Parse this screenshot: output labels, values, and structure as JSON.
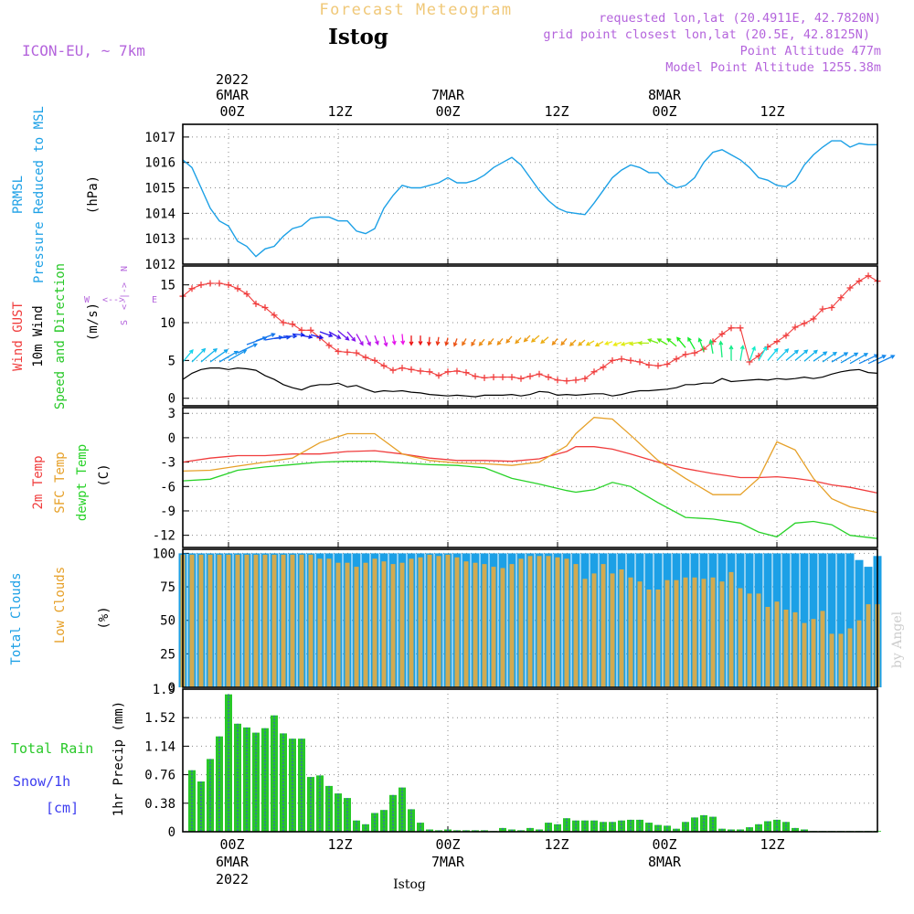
{
  "header": {
    "subtitle": "Forecast Meteogram",
    "station": "Istog",
    "model": "ICON-EU, ~ 7km",
    "requested": "requested lon,lat (20.4911E, 42.7820N)",
    "gridpoint": "grid point closest lon,lat (20.5E, 42.8125N)",
    "point_alt": "Point Altitude 477m",
    "model_alt": "Model Point Altitude 1255.38m",
    "footer_station": "Istog",
    "credit": "by Angel"
  },
  "time_axis": {
    "top_year": "2022",
    "ticks": [
      {
        "label": "00Z",
        "date": "6MAR",
        "hour": 0
      },
      {
        "label": "12Z",
        "date": "",
        "hour": 12
      },
      {
        "label": "00Z",
        "date": "7MAR",
        "hour": 24
      },
      {
        "label": "12Z",
        "date": "",
        "hour": 36
      },
      {
        "label": "00Z",
        "date": "8MAR",
        "hour": 48
      },
      {
        "label": "12Z",
        "date": "",
        "hour": 60
      }
    ],
    "range_hours": [
      -5,
      71
    ]
  },
  "colors": {
    "pressure": "#1ca0e6",
    "gust": "#f03c3c",
    "wind": "#000000",
    "temp2m": "#f03c3c",
    "sfc": "#e6a028",
    "dewpt": "#28d228",
    "total_clouds": "#1ca0e6",
    "low_clouds": "#d2aa50",
    "rain": "#28c828",
    "snow": "#3c3cf0",
    "violet": "#b464dc",
    "grid": "#888888"
  },
  "panel_labels": {
    "pressure": [
      "PRMSL",
      "Pressure Reduced to MSL",
      "(hPa)"
    ],
    "wind": [
      "Wind GUST",
      "10m Wind",
      "Speed and Direction",
      "(m/s)"
    ],
    "compass": {
      "n": "N",
      "s": "S",
      "w": "W",
      "e": "E"
    },
    "temp": [
      "2m Temp",
      "SFC Temp",
      "dewpt Temp",
      "(C)"
    ],
    "clouds": [
      "Total Clouds",
      "Low Clouds",
      "(%)"
    ],
    "precip": [
      "Total Rain",
      "Snow/1h",
      "[cm]",
      "1hr Precip (mm)"
    ]
  },
  "chart_data": [
    {
      "type": "line",
      "name": "pressure",
      "ylabel": "(hPa)",
      "ylim": [
        1012,
        1017.5
      ],
      "yticks": [
        1012,
        1013,
        1014,
        1015,
        1016,
        1017
      ],
      "x": [
        -5,
        -4,
        -3,
        -2,
        -1,
        0,
        1,
        2,
        3,
        4,
        5,
        6,
        7,
        8,
        9,
        10,
        11,
        12,
        13,
        14,
        15,
        16,
        17,
        18,
        19,
        20,
        21,
        22,
        23,
        24,
        25,
        26,
        27,
        28,
        29,
        30,
        31,
        32,
        33,
        34,
        35,
        36,
        37,
        38,
        39,
        40,
        41,
        42,
        43,
        44,
        45,
        46,
        47,
        48,
        49,
        50,
        51,
        52,
        53,
        54,
        55,
        56,
        57,
        58,
        59,
        60,
        61,
        62,
        63,
        64,
        65,
        66,
        67,
        68,
        69,
        70,
        71
      ],
      "y": [
        1016.1,
        1015.8,
        1015.0,
        1014.2,
        1013.7,
        1013.5,
        1012.9,
        1012.7,
        1012.3,
        1012.6,
        1012.7,
        1013.1,
        1013.4,
        1013.5,
        1013.8,
        1013.85,
        1013.85,
        1013.7,
        1013.7,
        1013.3,
        1013.2,
        1013.4,
        1014.2,
        1014.7,
        1015.1,
        1015.0,
        1015.0,
        1015.1,
        1015.2,
        1015.4,
        1015.2,
        1015.2,
        1015.3,
        1015.5,
        1015.8,
        1016.0,
        1016.2,
        1015.9,
        1015.4,
        1014.9,
        1014.5,
        1014.2,
        1014.05,
        1014.0,
        1013.95,
        1014.4,
        1014.9,
        1015.4,
        1015.7,
        1015.9,
        1015.8,
        1015.6,
        1015.6,
        1015.2,
        1015.0,
        1015.1,
        1015.4,
        1016.0,
        1016.4,
        1016.5,
        1016.3,
        1016.1,
        1015.8,
        1015.4,
        1015.3,
        1015.1,
        1015.05,
        1015.3,
        1015.9,
        1016.3,
        1016.6,
        1016.85,
        1016.85,
        1016.6,
        1016.75,
        1016.7,
        1016.7
      ]
    },
    {
      "type": "line",
      "name": "wind",
      "ylabel": "(m/s)",
      "ylim": [
        -1,
        17.5
      ],
      "yticks": [
        0,
        5,
        10,
        15
      ],
      "x": [
        -5,
        -4,
        -3,
        -2,
        -1,
        0,
        1,
        2,
        3,
        4,
        5,
        6,
        7,
        8,
        9,
        10,
        11,
        12,
        13,
        14,
        15,
        16,
        17,
        18,
        19,
        20,
        21,
        22,
        23,
        24,
        25,
        26,
        27,
        28,
        29,
        30,
        31,
        32,
        33,
        34,
        35,
        36,
        37,
        38,
        39,
        40,
        41,
        42,
        43,
        44,
        45,
        46,
        47,
        48,
        49,
        50,
        51,
        52,
        53,
        54,
        55,
        56,
        57,
        58,
        59,
        60,
        61,
        62,
        63,
        64,
        65,
        66,
        67,
        68,
        69,
        70,
        71
      ],
      "gust": [
        13.5,
        14.5,
        15.0,
        15.2,
        15.2,
        15.0,
        14.5,
        13.8,
        12.5,
        12.0,
        11.0,
        10.0,
        9.8,
        9.0,
        9.0,
        8.0,
        7.0,
        6.2,
        6.1,
        6.0,
        5.4,
        5.0,
        4.3,
        3.7,
        4.0,
        3.8,
        3.6,
        3.5,
        3.0,
        3.5,
        3.6,
        3.4,
        2.9,
        2.7,
        2.8,
        2.8,
        2.8,
        2.6,
        2.9,
        3.2,
        2.8,
        2.4,
        2.3,
        2.4,
        2.6,
        3.5,
        4.1,
        5.0,
        5.2,
        5.0,
        4.8,
        4.4,
        4.3,
        4.5,
        5.2,
        5.8,
        6.0,
        6.5,
        7.5,
        8.5,
        9.3,
        9.3,
        4.8,
        5.6,
        6.8,
        7.5,
        8.3,
        9.4,
        9.9,
        10.5,
        11.8,
        12.0,
        13.3,
        14.6,
        15.5,
        16.2,
        15.5
      ],
      "speed": [
        2.5,
        3.3,
        3.8,
        4.0,
        4.0,
        3.8,
        4.0,
        3.9,
        3.7,
        3.0,
        2.5,
        1.8,
        1.4,
        1.1,
        1.6,
        1.8,
        1.8,
        2.0,
        1.5,
        1.7,
        1.2,
        0.8,
        1.0,
        0.9,
        1.0,
        0.8,
        0.7,
        0.5,
        0.4,
        0.3,
        0.4,
        0.3,
        0.2,
        0.4,
        0.4,
        0.4,
        0.5,
        0.3,
        0.5,
        0.9,
        0.8,
        0.4,
        0.5,
        0.4,
        0.5,
        0.6,
        0.6,
        0.3,
        0.5,
        0.8,
        1.0,
        1.0,
        1.1,
        1.2,
        1.4,
        1.8,
        1.8,
        2.0,
        2.0,
        2.6,
        2.2,
        2.3,
        2.4,
        2.5,
        2.4,
        2.6,
        2.5,
        2.6,
        2.8,
        2.6,
        2.8,
        3.2,
        3.5,
        3.7,
        3.8,
        3.4,
        3.3
      ],
      "direction": [
        220,
        225,
        230,
        235,
        240,
        240,
        245,
        250,
        250,
        260,
        265,
        270,
        275,
        280,
        285,
        290,
        300,
        310,
        320,
        330,
        335,
        340,
        345,
        350,
        355,
        0,
        0,
        5,
        10,
        15,
        20,
        30,
        30,
        40,
        40,
        40,
        40,
        45,
        45,
        50,
        50,
        40,
        40,
        45,
        50,
        60,
        60,
        70,
        70,
        75,
        80,
        90,
        110,
        120,
        130,
        140,
        150,
        160,
        170,
        175,
        180,
        190,
        200,
        210,
        220,
        225,
        230,
        230,
        230,
        235,
        235,
        240,
        240,
        240,
        245,
        245,
        245
      ],
      "barbs": [
        4.8,
        4.8,
        4.8,
        4.8,
        4.8,
        5.0,
        6.0,
        7.1,
        7.6,
        7.7,
        7.9,
        8.2,
        8.5,
        8.3,
        8.4,
        8.8,
        8.8,
        8.9,
        8.8,
        8.5,
        8.3,
        8.3,
        8.2,
        8.4,
        8.5,
        8.3,
        8.3,
        8.1,
        8.1,
        8.0,
        7.9,
        7.9,
        7.8,
        7.8,
        7.9,
        7.9,
        8.2,
        8.0,
        8.3,
        8.3,
        8.1,
        7.9,
        7.9,
        7.7,
        7.7,
        7.6,
        7.5,
        7.5,
        7.4,
        7.4,
        7.4,
        7.3,
        7.3,
        7.1,
        6.9,
        6.7,
        6.5,
        6.2,
        5.9,
        5.4,
        5.0,
        5.0,
        4.9,
        5.0,
        5.0,
        5.0,
        5.0,
        5.0,
        4.9,
        4.9,
        4.8,
        4.8,
        4.7,
        4.6,
        4.6,
        4.6,
        4.6
      ]
    },
    {
      "type": "line",
      "name": "temperature",
      "ylabel": "(C)",
      "ylim": [
        -13.5,
        3.7
      ],
      "yticks": [
        3,
        0,
        -3,
        -6,
        -9,
        -12
      ],
      "x": [
        -5,
        -2,
        1,
        4,
        7,
        10,
        13,
        16,
        19,
        22,
        25,
        28,
        31,
        34,
        37,
        38,
        40,
        42,
        44,
        47,
        50,
        53,
        56,
        58,
        60,
        62,
        64,
        66,
        68,
        71
      ],
      "temp2m": [
        -3.0,
        -2.5,
        -2.2,
        -2.2,
        -2.0,
        -2.0,
        -1.7,
        -1.6,
        -2.0,
        -2.5,
        -2.8,
        -2.8,
        -2.9,
        -2.6,
        -1.7,
        -1.1,
        -1.1,
        -1.4,
        -2.0,
        -3.0,
        -3.8,
        -4.4,
        -4.9,
        -4.9,
        -4.8,
        -5.0,
        -5.3,
        -5.8,
        -6.1,
        -6.8
      ],
      "sfc": [
        -4.1,
        -4.0,
        -3.5,
        -3.0,
        -2.5,
        -0.6,
        0.5,
        0.5,
        -2.0,
        -2.8,
        -3.1,
        -3.2,
        -3.4,
        -3.0,
        -1.0,
        0.5,
        2.5,
        2.3,
        0.3,
        -2.8,
        -5.0,
        -7.0,
        -7.0,
        -5.0,
        -0.5,
        -1.5,
        -5.0,
        -7.5,
        -8.5,
        -9.2
      ],
      "dewpt": [
        -5.3,
        -5.1,
        -4.0,
        -3.6,
        -3.3,
        -3.0,
        -2.9,
        -2.9,
        -3.1,
        -3.3,
        -3.4,
        -3.7,
        -5.0,
        -5.7,
        -6.5,
        -6.7,
        -6.4,
        -5.5,
        -6.0,
        -8.0,
        -9.8,
        -10.0,
        -10.5,
        -11.6,
        -12.2,
        -10.5,
        -10.3,
        -10.7,
        -12.0,
        -12.4
      ]
    },
    {
      "type": "bar",
      "name": "clouds",
      "ylabel": "(%)",
      "ylim": [
        0,
        103
      ],
      "yticks": [
        0,
        25,
        50,
        75,
        100
      ],
      "x": [
        -5,
        -4,
        -3,
        -2,
        -1,
        0,
        1,
        2,
        3,
        4,
        5,
        6,
        7,
        8,
        9,
        10,
        11,
        12,
        13,
        14,
        15,
        16,
        17,
        18,
        19,
        20,
        21,
        22,
        23,
        24,
        25,
        26,
        27,
        28,
        29,
        30,
        31,
        32,
        33,
        34,
        35,
        36,
        37,
        38,
        39,
        40,
        41,
        42,
        43,
        44,
        45,
        46,
        47,
        48,
        49,
        50,
        51,
        52,
        53,
        54,
        55,
        56,
        57,
        58,
        59,
        60,
        61,
        62,
        63,
        64,
        65,
        66,
        67,
        68,
        69,
        70,
        71
      ],
      "total": [
        100,
        100,
        100,
        100,
        100,
        100,
        100,
        100,
        100,
        100,
        100,
        100,
        100,
        100,
        100,
        100,
        100,
        100,
        100,
        100,
        100,
        100,
        100,
        100,
        100,
        100,
        100,
        100,
        100,
        100,
        100,
        100,
        100,
        100,
        100,
        100,
        100,
        100,
        100,
        100,
        100,
        100,
        100,
        100,
        100,
        100,
        100,
        100,
        100,
        100,
        100,
        100,
        100,
        100,
        100,
        100,
        100,
        100,
        100,
        100,
        100,
        100,
        100,
        100,
        100,
        100,
        100,
        100,
        100,
        100,
        100,
        100,
        100,
        100,
        95,
        90,
        98
      ],
      "low": [
        99,
        99,
        99,
        99,
        99,
        99,
        99,
        99,
        99,
        99,
        99,
        99,
        99,
        99,
        99,
        96,
        96,
        93,
        93,
        90,
        93,
        96,
        94,
        92,
        93,
        96,
        97,
        99,
        98,
        99,
        97,
        94,
        93,
        92,
        90,
        89,
        92,
        96,
        98,
        98,
        98,
        97,
        96,
        92,
        81,
        85,
        92,
        85,
        88,
        82,
        79,
        73,
        73,
        80,
        80,
        82,
        82,
        81,
        82,
        79,
        86,
        74,
        70,
        70,
        60,
        64,
        58,
        56,
        48,
        51,
        57,
        40,
        40,
        44,
        50,
        62,
        62
      ]
    },
    {
      "type": "bar",
      "name": "precip",
      "ylabel": "1hr Precip (mm)",
      "ylim": [
        0,
        1.9
      ],
      "yticks": [
        0,
        0.38,
        0.76,
        1.14,
        1.52,
        1.9
      ],
      "x": [
        -4,
        -3,
        -2,
        -1,
        0,
        1,
        2,
        3,
        4,
        5,
        6,
        7,
        8,
        9,
        10,
        11,
        12,
        13,
        14,
        15,
        16,
        17,
        18,
        19,
        20,
        21,
        22,
        23,
        24,
        25,
        26,
        27,
        28,
        29,
        30,
        31,
        32,
        33,
        34,
        35,
        36,
        37,
        38,
        39,
        40,
        41,
        42,
        43,
        44,
        45,
        46,
        47,
        48,
        49,
        50,
        51,
        52,
        53,
        54,
        55,
        56,
        57,
        58,
        59,
        60,
        61,
        62,
        63,
        64,
        65,
        66,
        67,
        68,
        69,
        70,
        71
      ],
      "rain": [
        0.82,
        0.67,
        0.97,
        1.27,
        1.83,
        1.44,
        1.39,
        1.32,
        1.38,
        1.55,
        1.31,
        1.24,
        1.24,
        0.73,
        0.75,
        0.61,
        0.51,
        0.45,
        0.15,
        0.1,
        0.25,
        0.29,
        0.49,
        0.59,
        0.3,
        0.12,
        0.03,
        0.02,
        0.03,
        0.02,
        0.02,
        0.02,
        0.02,
        0.01,
        0.05,
        0.03,
        0.02,
        0.05,
        0.03,
        0.12,
        0.1,
        0.18,
        0.15,
        0.15,
        0.15,
        0.13,
        0.13,
        0.15,
        0.16,
        0.16,
        0.12,
        0.09,
        0.08,
        0.04,
        0.13,
        0.19,
        0.22,
        0.2,
        0.04,
        0.03,
        0.03,
        0.06,
        0.1,
        0.14,
        0.16,
        0.13,
        0.05,
        0.03,
        0.01,
        0.01,
        0.01,
        0.01,
        0.01,
        0.01,
        0.01,
        0.01
      ]
    }
  ]
}
